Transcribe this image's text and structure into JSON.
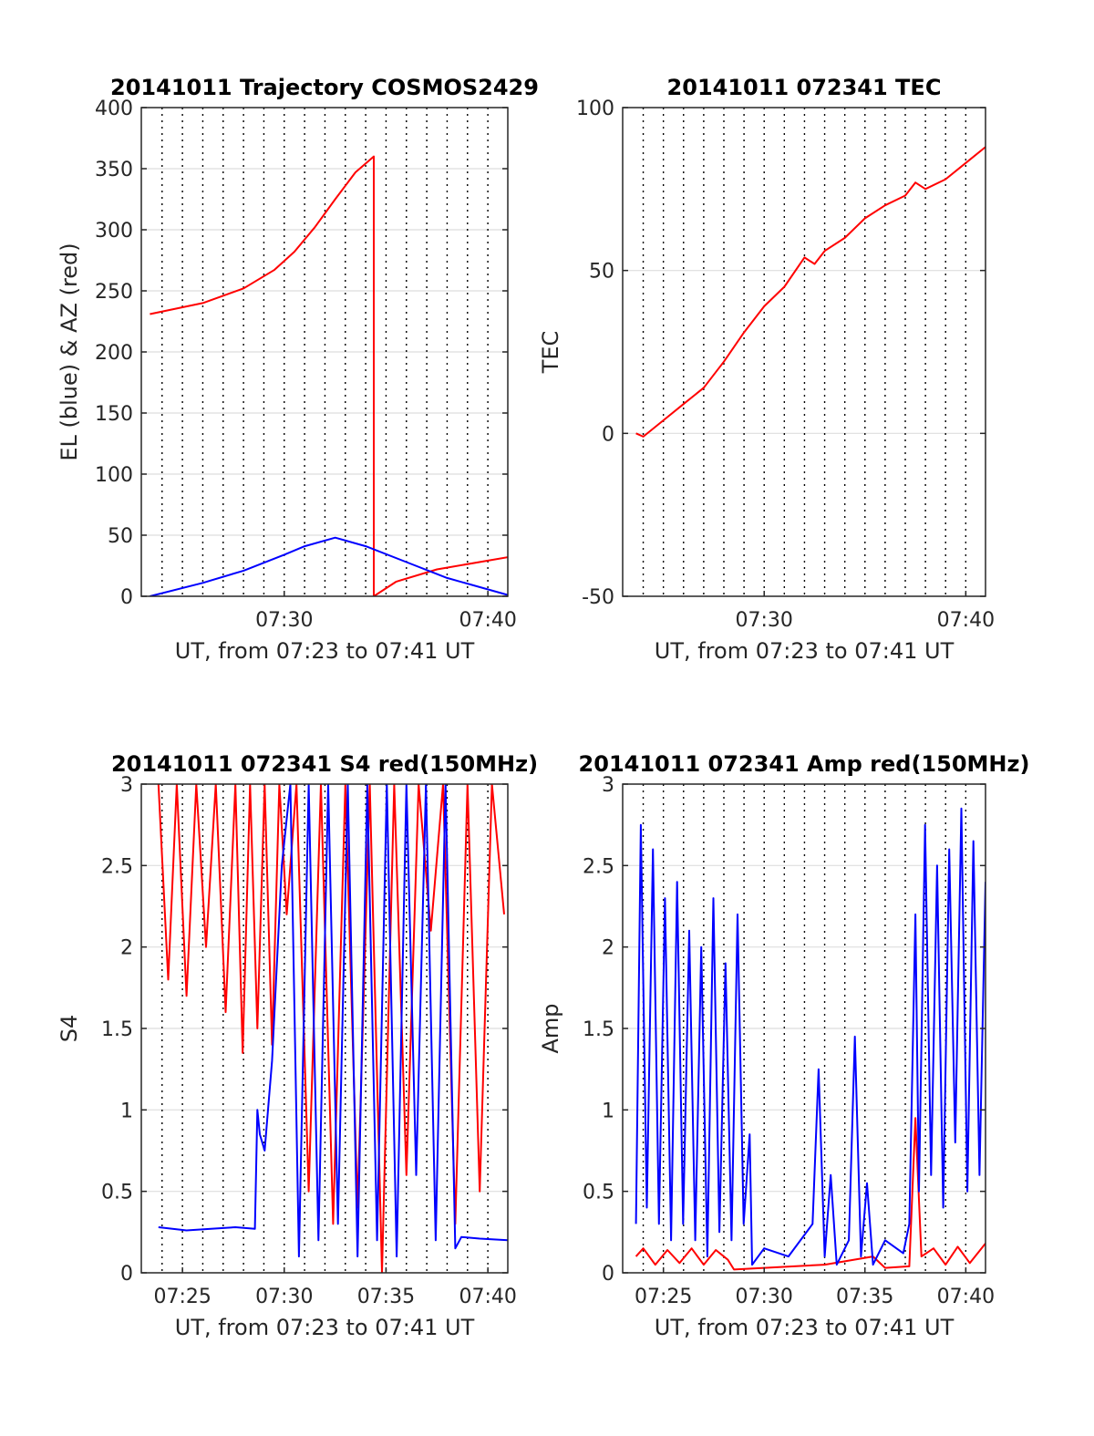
{
  "chart_data": [
    {
      "type": "line",
      "title": "20141011 Trajectory COSMOS2429",
      "xlabel": "UT, from 07:23 to 07:41 UT",
      "ylabel": "EL (blue) & AZ (red)",
      "xlim": [
        7.383,
        7.683
      ],
      "ylim": [
        0,
        400
      ],
      "yticks": [
        0,
        50,
        100,
        150,
        200,
        250,
        300,
        350,
        400
      ],
      "xticks": [
        {
          "label": "07:30",
          "x": 7.5
        },
        {
          "label": "07:40",
          "x": 7.6667
        }
      ],
      "grid": true,
      "series": [
        {
          "color": "#ff0000",
          "x": [
            7.39,
            7.4333,
            7.4667,
            7.4917,
            7.5083,
            7.525,
            7.5417,
            7.5583,
            7.5733,
            7.5733,
            7.5917,
            7.625,
            7.6833
          ],
          "y": [
            231,
            240,
            252,
            267,
            282,
            302,
            325,
            347,
            360,
            0,
            12,
            22,
            32
          ]
        },
        {
          "color": "#0000ff",
          "x": [
            7.39,
            7.4333,
            7.4667,
            7.5,
            7.5167,
            7.5417,
            7.5667,
            7.6,
            7.6333,
            7.6833
          ],
          "y": [
            0,
            11,
            21,
            34,
            41,
            48,
            41,
            28,
            15,
            1
          ]
        }
      ]
    },
    {
      "type": "line",
      "title": "20141011 072341 TEC",
      "xlabel": "UT, from 07:23 to 07:41 UT",
      "ylabel": "TEC",
      "xlim": [
        7.383,
        7.683
      ],
      "ylim": [
        -50,
        100
      ],
      "yticks": [
        -50,
        0,
        50,
        100
      ],
      "xticks": [
        {
          "label": "07:30",
          "x": 7.5
        },
        {
          "label": "07:40",
          "x": 7.6667
        }
      ],
      "grid": true,
      "series": [
        {
          "color": "#ff0000",
          "x": [
            7.394,
            7.4,
            7.4167,
            7.4333,
            7.45,
            7.4667,
            7.4833,
            7.5,
            7.5167,
            7.5333,
            7.5417,
            7.55,
            7.5667,
            7.5833,
            7.6,
            7.6167,
            7.625,
            7.6333,
            7.65,
            7.6667,
            7.6833
          ],
          "y": [
            0,
            -1,
            4,
            9,
            14,
            22,
            31,
            39,
            45,
            54,
            52,
            56,
            60,
            66,
            70,
            73,
            77,
            75,
            78,
            83,
            88
          ]
        }
      ]
    },
    {
      "type": "line",
      "title": "20141011 072341 S4 red(150MHz)",
      "xlabel": "UT, from 07:23 to 07:41 UT",
      "ylabel": "S4",
      "xlim": [
        7.383,
        7.683
      ],
      "ylim": [
        0,
        3
      ],
      "yticks": [
        0,
        0.5,
        1,
        1.5,
        2,
        2.5,
        3
      ],
      "xticks": [
        {
          "label": "07:25",
          "x": 7.4167
        },
        {
          "label": "07:30",
          "x": 7.5
        },
        {
          "label": "07:35",
          "x": 7.5833
        },
        {
          "label": "07:40",
          "x": 7.6667
        }
      ],
      "grid": true,
      "series": [
        {
          "color": "#ff0000",
          "x": [
            7.397,
            7.405,
            7.412,
            7.42,
            7.428,
            7.436,
            7.444,
            7.452,
            7.46,
            7.466,
            7.472,
            7.478,
            7.484,
            7.49,
            7.496,
            7.502,
            7.51,
            7.52,
            7.53,
            7.54,
            7.55,
            7.56,
            7.57,
            7.58,
            7.59,
            7.6,
            7.61,
            7.62,
            7.63,
            7.64,
            7.65,
            7.66,
            7.67,
            7.68
          ],
          "y": [
            3,
            1.8,
            3,
            1.7,
            3,
            2.0,
            3,
            1.6,
            3,
            1.35,
            3,
            1.5,
            3,
            1.4,
            3,
            2.2,
            3,
            0.5,
            3,
            0.3,
            3,
            0.4,
            3,
            0,
            3,
            0.6,
            3,
            2.1,
            3,
            0.3,
            3,
            0.5,
            3,
            2.2
          ]
        },
        {
          "color": "#0000ff",
          "x": [
            7.397,
            7.42,
            7.44,
            7.46,
            7.476,
            7.478,
            7.48,
            7.484,
            7.49,
            7.498,
            7.505,
            7.512,
            7.52,
            7.528,
            7.536,
            7.544,
            7.552,
            7.56,
            7.568,
            7.576,
            7.584,
            7.592,
            7.6,
            7.608,
            7.616,
            7.624,
            7.632,
            7.64,
            7.645,
            7.66,
            7.683
          ],
          "y": [
            0.28,
            0.26,
            0.27,
            0.28,
            0.27,
            1.0,
            0.85,
            0.75,
            1.3,
            2.5,
            3,
            0.1,
            3,
            0.2,
            3,
            0.3,
            3,
            0.1,
            3,
            0.2,
            3,
            0.1,
            3,
            0.6,
            3,
            0.2,
            3,
            0.15,
            0.22,
            0.21,
            0.2
          ]
        }
      ]
    },
    {
      "type": "line",
      "title": "20141011 072341 Amp red(150MHz)",
      "xlabel": "UT, from 07:23 to 07:41 UT",
      "ylabel": "Amp",
      "xlim": [
        7.383,
        7.683
      ],
      "ylim": [
        0,
        3
      ],
      "yticks": [
        0,
        0.5,
        1,
        1.5,
        2,
        2.5,
        3
      ],
      "xticks": [
        {
          "label": "07:25",
          "x": 7.4167
        },
        {
          "label": "07:30",
          "x": 7.5
        },
        {
          "label": "07:35",
          "x": 7.5833
        },
        {
          "label": "07:40",
          "x": 7.6667
        }
      ],
      "grid": true,
      "series": [
        {
          "color": "#ff0000",
          "x": [
            7.394,
            7.4,
            7.41,
            7.42,
            7.43,
            7.44,
            7.45,
            7.46,
            7.47,
            7.475,
            7.5,
            7.55,
            7.59,
            7.6,
            7.62,
            7.625,
            7.63,
            7.64,
            7.65,
            7.66,
            7.67,
            7.683
          ],
          "y": [
            0.1,
            0.15,
            0.05,
            0.14,
            0.06,
            0.15,
            0.05,
            0.14,
            0.08,
            0.02,
            0.03,
            0.05,
            0.1,
            0.03,
            0.04,
            0.95,
            0.1,
            0.15,
            0.05,
            0.16,
            0.06,
            0.18
          ]
        },
        {
          "color": "#0000ff",
          "x": [
            7.394,
            7.398,
            7.403,
            7.408,
            7.413,
            7.418,
            7.423,
            7.428,
            7.433,
            7.438,
            7.443,
            7.448,
            7.453,
            7.458,
            7.463,
            7.468,
            7.473,
            7.478,
            7.483,
            7.488,
            7.49,
            7.5,
            7.52,
            7.54,
            7.545,
            7.55,
            7.555,
            7.56,
            7.57,
            7.575,
            7.58,
            7.585,
            7.59,
            7.6,
            7.615,
            7.62,
            7.625,
            7.628,
            7.633,
            7.638,
            7.643,
            7.648,
            7.653,
            7.658,
            7.663,
            7.668,
            7.673,
            7.678,
            7.683
          ],
          "y": [
            0.3,
            2.75,
            0.4,
            2.6,
            0.3,
            2.3,
            0.2,
            2.4,
            0.3,
            2.1,
            0.2,
            2.0,
            0.1,
            2.3,
            0.25,
            1.9,
            0.2,
            2.2,
            0.3,
            0.85,
            0.05,
            0.15,
            0.1,
            0.3,
            1.25,
            0.1,
            0.6,
            0.05,
            0.2,
            1.45,
            0.1,
            0.55,
            0.05,
            0.2,
            0.12,
            0.3,
            2.2,
            0.5,
            2.75,
            0.6,
            2.5,
            0.4,
            2.6,
            0.8,
            2.85,
            0.5,
            2.65,
            0.6,
            2.4
          ]
        }
      ]
    }
  ]
}
